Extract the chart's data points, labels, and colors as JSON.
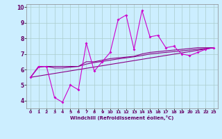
{
  "xlabel": "Windchill (Refroidissement éolien,°C)",
  "xlim": [
    -0.5,
    23.5
  ],
  "ylim": [
    3.5,
    10.2
  ],
  "xticks": [
    0,
    1,
    2,
    3,
    4,
    5,
    6,
    7,
    8,
    9,
    10,
    11,
    12,
    13,
    14,
    15,
    16,
    17,
    18,
    19,
    20,
    21,
    22,
    23
  ],
  "yticks": [
    4,
    5,
    6,
    7,
    8,
    9,
    10
  ],
  "background_color": "#cceeff",
  "grid_color": "#aacccc",
  "line_color": "#cc00cc",
  "line_color2": "#880088",
  "jagged_line": {
    "x": [
      0,
      1,
      2,
      3,
      4,
      5,
      6,
      7,
      8,
      9,
      10,
      11,
      12,
      13,
      14,
      15,
      16,
      17,
      18,
      19,
      20,
      21,
      22,
      23
    ],
    "y": [
      5.5,
      6.2,
      6.2,
      4.2,
      3.9,
      5.0,
      4.7,
      7.7,
      5.9,
      6.5,
      7.1,
      9.2,
      9.5,
      7.3,
      9.8,
      8.1,
      8.2,
      7.4,
      7.5,
      7.0,
      6.9,
      7.1,
      7.3,
      7.4
    ]
  },
  "diagonal_line": {
    "x": [
      0,
      23
    ],
    "y": [
      5.5,
      7.4
    ]
  },
  "upper_line": {
    "x": [
      0,
      1,
      2,
      3,
      4,
      5,
      6,
      7,
      8,
      9,
      10,
      11,
      12,
      13,
      14,
      15,
      16,
      17,
      18,
      19,
      20,
      21,
      22,
      23
    ],
    "y": [
      5.5,
      6.2,
      6.2,
      6.2,
      6.2,
      6.2,
      6.2,
      6.5,
      6.5,
      6.6,
      6.7,
      6.75,
      6.8,
      6.85,
      7.0,
      7.1,
      7.15,
      7.2,
      7.25,
      7.3,
      7.35,
      7.4,
      7.4,
      7.4
    ]
  },
  "mid_line": {
    "x": [
      0,
      1,
      2,
      3,
      4,
      5,
      6,
      7,
      8,
      9,
      10,
      11,
      12,
      13,
      14,
      15,
      16,
      17,
      18,
      19,
      20,
      21,
      22,
      23
    ],
    "y": [
      5.5,
      6.15,
      6.2,
      6.1,
      6.1,
      6.15,
      6.2,
      6.35,
      6.45,
      6.52,
      6.6,
      6.68,
      6.75,
      6.82,
      6.9,
      7.0,
      7.05,
      7.1,
      7.15,
      7.2,
      7.25,
      7.3,
      7.35,
      7.4
    ]
  }
}
